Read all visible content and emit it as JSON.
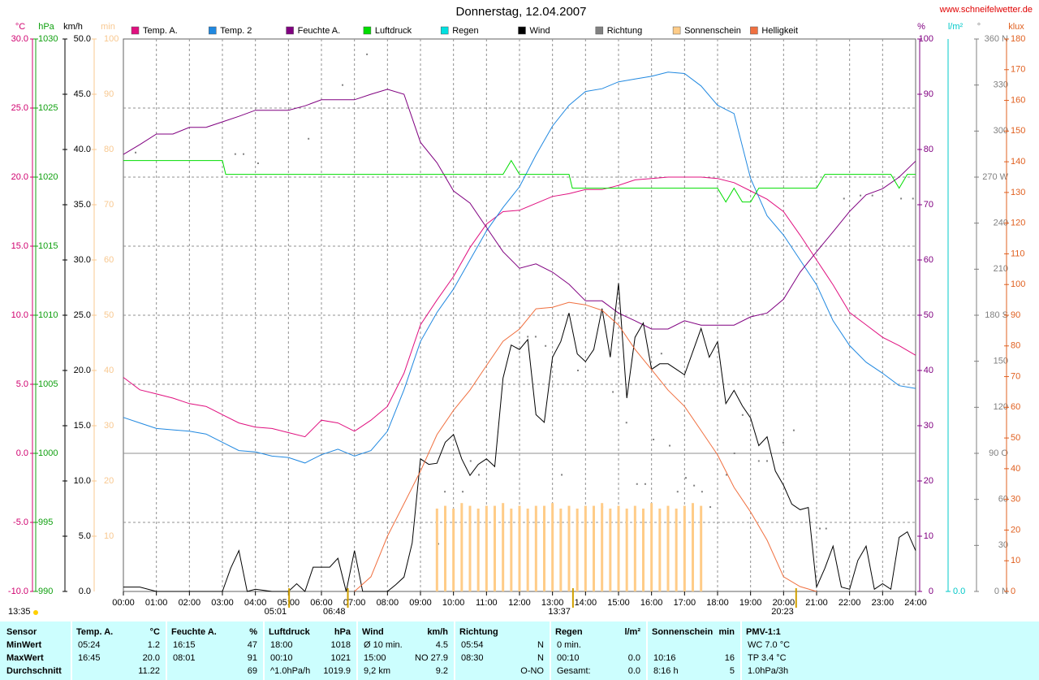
{
  "chart_data": {
    "type": "line",
    "title": "Donnerstag, 12.04.2007",
    "source": "www.schneifelwetter.de",
    "grid": true,
    "zero_line": true,
    "xlim": [
      0,
      24
    ],
    "xticks": [
      {
        "value": 0,
        "label": "00:00"
      },
      {
        "value": 1,
        "label": "01:00"
      },
      {
        "value": 2,
        "label": "02:00"
      },
      {
        "value": 3,
        "label": "03:00"
      },
      {
        "value": 4,
        "label": "04:00"
      },
      {
        "value": 5,
        "label": "05:00"
      },
      {
        "value": 6,
        "label": "06:00"
      },
      {
        "value": 7,
        "label": "07:00"
      },
      {
        "value": 8,
        "label": "08:00"
      },
      {
        "value": 9,
        "label": "09:00"
      },
      {
        "value": 10,
        "label": "10:00"
      },
      {
        "value": 11,
        "label": "11:00"
      },
      {
        "value": 12,
        "label": "12:00"
      },
      {
        "value": 13,
        "label": "13:00"
      },
      {
        "value": 14,
        "label": "14:00"
      },
      {
        "value": 15,
        "label": "15:00"
      },
      {
        "value": 16,
        "label": "16:00"
      },
      {
        "value": 17,
        "label": "17:00"
      },
      {
        "value": 18,
        "label": "18:00"
      },
      {
        "value": 19,
        "label": "19:00"
      },
      {
        "value": 20,
        "label": "20:00"
      },
      {
        "value": 21,
        "label": "21:00"
      },
      {
        "value": 22,
        "label": "22:00"
      },
      {
        "value": 23,
        "label": "23:00"
      },
      {
        "value": 24,
        "label": "24:00"
      }
    ],
    "axes": [
      {
        "unit": "°C",
        "color": "#d0006f",
        "ylim": [
          -10,
          30
        ],
        "yticks": [
          {
            "value": -10,
            "label": "-10.0"
          },
          {
            "value": -5,
            "label": "-5.0"
          },
          {
            "value": 0,
            "label": "0.0"
          },
          {
            "value": 5,
            "label": "5.0"
          },
          {
            "value": 10,
            "label": "10.0"
          },
          {
            "value": 15,
            "label": "15.0"
          },
          {
            "value": 20,
            "label": "20.0"
          },
          {
            "value": 25,
            "label": "25.0"
          },
          {
            "value": 30,
            "label": "30.0"
          }
        ]
      },
      {
        "unit": "hPa",
        "color": "#10a010",
        "ylim": [
          990,
          1030
        ],
        "yticks": [
          990,
          995,
          1000,
          1005,
          1010,
          1015,
          1020,
          1025,
          1030
        ]
      },
      {
        "unit": "km/h",
        "color": "#000000",
        "ylim": [
          0,
          50
        ],
        "yticks": [
          {
            "value": 0,
            "label": "0.0"
          },
          {
            "value": 5,
            "label": "5.0"
          },
          {
            "value": 10,
            "label": "10.0"
          },
          {
            "value": 15,
            "label": "15.0"
          },
          {
            "value": 20,
            "label": "20.0"
          },
          {
            "value": 25,
            "label": "25.0"
          },
          {
            "value": 30,
            "label": "30.0"
          },
          {
            "value": 35,
            "label": "35.0"
          },
          {
            "value": 40,
            "label": "40.0"
          },
          {
            "value": 45,
            "label": "45.0"
          },
          {
            "value": 50,
            "label": "50.0"
          }
        ]
      },
      {
        "unit": "min",
        "color": "#f8c890",
        "ylim": [
          0,
          100
        ],
        "yticks": [
          10,
          20,
          30,
          40,
          50,
          60,
          70,
          80,
          90,
          100
        ]
      },
      {
        "unit": "%",
        "color": "#800080",
        "ylim": [
          0,
          100
        ],
        "yticks": [
          0,
          10,
          20,
          30,
          40,
          50,
          60,
          70,
          80,
          90,
          100
        ]
      },
      {
        "unit": "l/m²",
        "color": "#00c8c8",
        "yticks": [
          {
            "value": 0,
            "label": "0.0"
          }
        ]
      },
      {
        "unit": "°",
        "color": "#808080",
        "ylim": [
          0,
          360
        ],
        "yticks": [
          {
            "value": 0,
            "label": "0 N"
          },
          30,
          60,
          {
            "value": 90,
            "label": "90 O"
          },
          120,
          150,
          {
            "value": 180,
            "label": "180 S"
          },
          210,
          240,
          {
            "value": 270,
            "label": "270 W"
          },
          300,
          330,
          {
            "value": 360,
            "label": "360 N"
          }
        ]
      },
      {
        "unit": "klux",
        "color": "#e06020",
        "ylim": [
          0,
          180
        ],
        "yticks": [
          0,
          10,
          20,
          30,
          40,
          50,
          60,
          70,
          80,
          90,
          100,
          110,
          120,
          130,
          140,
          150,
          160,
          170,
          180
        ]
      }
    ],
    "x": [
      0,
      0.5,
      1,
      1.5,
      2,
      2.5,
      3,
      3.5,
      4,
      4.5,
      5,
      5.5,
      6,
      6.5,
      7,
      7.5,
      8,
      8.5,
      9,
      9.5,
      10,
      10.5,
      11,
      11.5,
      12,
      12.5,
      13,
      13.5,
      14,
      14.5,
      15,
      15.5,
      16,
      16.5,
      17,
      17.5,
      18,
      18.5,
      19,
      19.5,
      20,
      20.5,
      21,
      21.5,
      22,
      22.5,
      23,
      23.5,
      24
    ],
    "series": [
      {
        "name": "Temp. A.",
        "color": "#e0107f",
        "axis": 0,
        "values": [
          5.5,
          4.6,
          4.3,
          4.0,
          3.6,
          3.4,
          2.8,
          2.2,
          1.9,
          1.8,
          1.5,
          1.2,
          2.4,
          2.2,
          1.6,
          2.4,
          3.4,
          5.8,
          9.3,
          11.1,
          12.8,
          14.9,
          16.6,
          17.5,
          17.6,
          18.1,
          18.6,
          18.8,
          19.1,
          19.1,
          19.4,
          19.8,
          19.9,
          20.0,
          20.0,
          20.0,
          19.9,
          19.6,
          19.0,
          18.4,
          17.5,
          15.8,
          14.0,
          12.2,
          10.2,
          9.3,
          8.4,
          7.8,
          7.1
        ]
      },
      {
        "name": "Temp. 2",
        "color": "#2088e0",
        "axis": 0,
        "values": [
          2.6,
          2.2,
          1.8,
          1.7,
          1.6,
          1.4,
          0.8,
          0.2,
          0.1,
          -0.2,
          -0.3,
          -0.7,
          -0.1,
          0.3,
          -0.2,
          0.2,
          1.6,
          4.6,
          8.1,
          10.2,
          11.9,
          14.0,
          16.1,
          17.8,
          19.3,
          21.6,
          23.7,
          25.2,
          26.2,
          26.4,
          26.9,
          27.1,
          27.3,
          27.6,
          27.5,
          26.6,
          25.2,
          24.6,
          19.9,
          17.2,
          15.8,
          14.0,
          12.2,
          9.6,
          7.8,
          6.6,
          5.8,
          4.9,
          4.7
        ]
      },
      {
        "name": "Feuchte A.",
        "color": "#800080",
        "axis": 4,
        "values": [
          79.1,
          80.9,
          82.8,
          82.8,
          84.0,
          84.0,
          85.0,
          86.0,
          87.1,
          87.1,
          87.1,
          87.9,
          89.0,
          89.0,
          89.0,
          90.0,
          90.9,
          90.0,
          81.3,
          77.6,
          72.5,
          70.3,
          65.9,
          61.5,
          58.5,
          59.3,
          57.8,
          55.6,
          52.6,
          52.6,
          50.4,
          49.0,
          47.5,
          47.5,
          49.0,
          48.2,
          48.2,
          48.2,
          49.7,
          50.4,
          52.9,
          57.8,
          61.5,
          65.1,
          68.8,
          71.8,
          72.9,
          75.0,
          77.9
        ]
      },
      {
        "name": "Luftdruck",
        "color": "#00dd00",
        "axis": 1,
        "x": [
          0,
          3,
          3.1,
          11.5,
          11.75,
          12,
          13.5,
          13.6,
          18,
          18.25,
          18.5,
          18.75,
          19,
          19.25,
          21,
          21.25,
          23.25,
          23.5,
          23.75,
          24
        ],
        "values": [
          1021.2,
          1021.2,
          1020.2,
          1020.2,
          1021.2,
          1020.2,
          1020.2,
          1019.2,
          1019.2,
          1018.2,
          1019.2,
          1018.2,
          1018.2,
          1019.2,
          1019.2,
          1020.2,
          1020.2,
          1019.2,
          1020.2,
          1020.2
        ]
      },
      {
        "name": "Regen",
        "color": "#00e0e0",
        "axis": 5,
        "x": [],
        "values": []
      },
      {
        "name": "Wind",
        "color": "#000000",
        "axis": 2,
        "x": [
          0,
          0.5,
          1,
          3,
          3.25,
          3.5,
          3.75,
          4,
          4.5,
          5,
          5.25,
          5.5,
          5.75,
          6.25,
          6.5,
          6.75,
          7,
          7.25,
          8,
          8.25,
          8.5,
          8.75,
          9,
          9.25,
          9.5,
          9.75,
          10,
          10.25,
          10.5,
          10.75,
          11,
          11.25,
          11.5,
          11.75,
          12,
          12.25,
          12.5,
          12.75,
          13,
          13.25,
          13.5,
          13.75,
          14,
          14.25,
          14.5,
          14.75,
          15,
          15.25,
          15.5,
          15.75,
          16,
          16.25,
          16.5,
          16.75,
          17,
          17.5,
          17.75,
          18,
          18.25,
          18.5,
          18.75,
          19,
          19.25,
          19.5,
          19.75,
          20,
          20.25,
          20.5,
          20.75,
          21,
          21.25,
          21.5,
          21.75,
          22,
          22.25,
          22.5,
          22.75,
          23,
          23.25,
          23.5,
          23.75,
          24
        ],
        "values": [
          0.4,
          0.4,
          0,
          0,
          2.1,
          3.7,
          0,
          0.2,
          0,
          0,
          0.7,
          0,
          2.2,
          2.2,
          3.0,
          0,
          3.7,
          0,
          0,
          0.6,
          1.3,
          4.4,
          12.0,
          11.5,
          11.6,
          13.5,
          14.2,
          12.0,
          10.5,
          11.5,
          12.0,
          11.3,
          19.3,
          22.3,
          21.9,
          22.8,
          16.0,
          15.3,
          21.2,
          22.6,
          25.2,
          21.5,
          20.8,
          21.9,
          25.6,
          21.2,
          27.9,
          17.5,
          23.0,
          24.3,
          20.1,
          20.6,
          20.6,
          20.1,
          19.6,
          23.8,
          21.2,
          22.6,
          17.0,
          18.2,
          16.8,
          15.7,
          13.2,
          14.0,
          10.9,
          9.6,
          7.9,
          7.4,
          7.6,
          0.4,
          2.1,
          4.1,
          0.4,
          0.2,
          2.8,
          4.1,
          0.2,
          0.7,
          0.2,
          4.9,
          5.4,
          3.7
        ]
      },
      {
        "name": "Richtung",
        "color": "#808080",
        "axis": 6,
        "type": "scatter",
        "x": [
          0.37,
          3.39,
          3.64,
          4.08,
          5.61,
          6.64,
          7.38,
          9.54,
          9.74,
          10.28,
          10.52,
          10.77,
          12.25,
          12.49,
          12.79,
          13.28,
          13.77,
          14.51,
          14.83,
          15.24,
          15.56,
          15.81,
          16.06,
          16.3,
          16.55,
          16.79,
          17.04,
          17.29,
          17.53,
          17.78,
          18.27,
          18.51,
          18.76,
          19.25,
          19.5,
          19.99,
          20.31,
          21.1,
          21.29,
          21.83,
          22.33,
          22.69,
          23.56,
          23.92
        ],
        "values": [
          286,
          285,
          285,
          279,
          295,
          330,
          350,
          31,
          65,
          65,
          85,
          76,
          166,
          166,
          160,
          76,
          144,
          55,
          130,
          110,
          70,
          70,
          99,
          155,
          95,
          65,
          74,
          69,
          65,
          55,
          76,
          90,
          115,
          85,
          85,
          97,
          105,
          41,
          41,
          256,
          258,
          258,
          256,
          256
        ]
      },
      {
        "name": "Sonnenschein",
        "color": "#ffcc88",
        "axis": 3,
        "type": "bar",
        "x": [
          9.5,
          9.75,
          10,
          10.25,
          10.5,
          10.75,
          11,
          11.25,
          11.5,
          11.75,
          12,
          12.25,
          12.5,
          12.75,
          13,
          13.25,
          13.5,
          13.75,
          14,
          14.25,
          14.5,
          14.75,
          15,
          15.25,
          15.5,
          15.75,
          16,
          16.25,
          16.5,
          16.75,
          17,
          17.25,
          17.5
        ],
        "values": [
          15,
          15.5,
          15,
          16,
          15.5,
          15,
          15.5,
          15.5,
          16,
          15,
          15.5,
          15,
          15.5,
          15.5,
          16,
          15,
          15.5,
          15,
          15.5,
          15.5,
          16,
          15,
          15.5,
          15,
          15.5,
          15,
          16,
          15,
          15.5,
          15,
          15.5,
          16,
          15.5
        ]
      },
      {
        "name": "Helligkeit",
        "color": "#f07040",
        "axis": 7,
        "x": [
          7,
          7.5,
          8,
          8.5,
          9,
          9.5,
          10,
          10.5,
          11,
          11.5,
          12,
          12.5,
          13,
          13.5,
          14,
          14.5,
          15,
          15.5,
          16,
          16.5,
          17,
          17.5,
          18,
          18.5,
          19,
          19.5,
          20,
          20.5,
          21
        ],
        "values": [
          0,
          4.8,
          18,
          28.6,
          39.2,
          51.1,
          59,
          65.6,
          73.6,
          81.5,
          85.5,
          92.1,
          92.6,
          94.2,
          93.4,
          91.6,
          86.8,
          78.9,
          72.3,
          65.6,
          60.3,
          52.4,
          44.5,
          33.9,
          25.9,
          16.7,
          4.8,
          1.6,
          0
        ]
      }
    ],
    "annotations": [
      {
        "text": "13:35"
      },
      {
        "text": "05:01",
        "x": 5.02
      },
      {
        "text": "06:48",
        "x": 6.8
      },
      {
        "text": "13:37",
        "x": 13.62
      },
      {
        "text": "20:23",
        "x": 20.38
      }
    ]
  },
  "stats": {
    "corner": "Sensor",
    "columns": [
      {
        "name": "Temp. A.",
        "unit": "°C"
      },
      {
        "name": "Feuchte A.",
        "unit": "%"
      },
      {
        "name": "Luftdruck",
        "unit": "hPa"
      },
      {
        "name": "Wind",
        "unit": "km/h"
      },
      {
        "name": "Richtung"
      },
      {
        "name": "Regen",
        "unit": "l/m²"
      },
      {
        "name": "Sonnenschein",
        "unit": "min"
      },
      {
        "name": "PMV-1:1"
      }
    ],
    "rows": [
      {
        "label": "MinWert",
        "cells": [
          {
            "l": "05:24",
            "r": "1.2"
          },
          {
            "l": "16:15",
            "r": "47"
          },
          {
            "l": "18:00",
            "r": "1018"
          },
          {
            "l": "Ø 10 min.",
            "r": "4.5"
          },
          {
            "l": "05:54",
            "r": "N"
          },
          {
            "l": "0 min."
          },
          {},
          {
            "l": "WC 7.0 °C"
          }
        ]
      },
      {
        "label": "MaxWert",
        "cells": [
          {
            "l": "16:45",
            "r": "20.0"
          },
          {
            "l": "08:01",
            "r": "91"
          },
          {
            "l": "00:10",
            "r": "1021"
          },
          {
            "l": "15:00",
            "r": "NO 27.9"
          },
          {
            "l": "08:30",
            "r": "N"
          },
          {
            "l": "00:10",
            "r": "0.0"
          },
          {
            "l": "10:16",
            "r": "16"
          },
          {
            "l": "TP 3.4 °C"
          }
        ]
      },
      {
        "label": "Durchschnitt",
        "cells": [
          {
            "r": "11.22"
          },
          {
            "r": "69"
          },
          {
            "l": "^1.0hPa/h",
            "r": "1019.9"
          },
          {
            "l": "9,2 km",
            "r": "9.2"
          },
          {
            "r": "O-NO"
          },
          {
            "l": "Gesamt:",
            "r": "0.0"
          },
          {
            "l": "8:16 h",
            "r": "5"
          },
          {
            "l": "1.0hPa/3h"
          }
        ]
      }
    ]
  }
}
